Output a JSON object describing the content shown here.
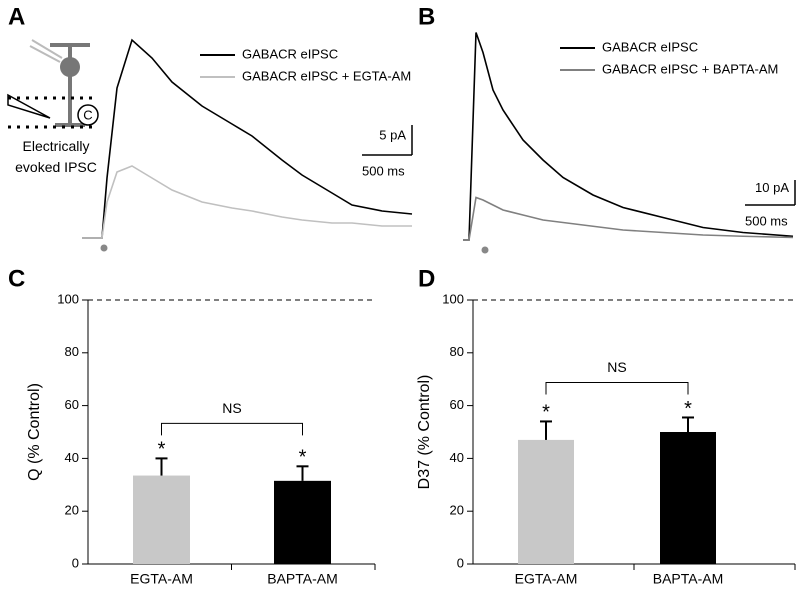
{
  "chart_data": [
    {
      "type": "line",
      "panel_label": "A",
      "x_unit": "ms",
      "x": [
        0,
        200,
        250,
        350,
        500,
        700,
        900,
        1200,
        1500,
        1700,
        2000,
        2200,
        2500,
        2700,
        3000,
        3300
      ],
      "series": [
        {
          "name": "GABACR eIPSC",
          "color": "#000000",
          "values": [
            0,
            0,
            10,
            25,
            33,
            30,
            26,
            22,
            19,
            17,
            13,
            10.5,
            7.5,
            5.5,
            4.5,
            4
          ]
        },
        {
          "name": "GABACR eIPSC + EGTA-AM",
          "color": "#c0c0c0",
          "values": [
            0,
            0,
            6,
            11,
            12,
            10,
            8,
            6,
            5,
            4.5,
            3.5,
            3,
            2.5,
            2.5,
            2,
            2
          ]
        }
      ],
      "scale_bar": {
        "y": 5,
        "y_label": "5 pA",
        "x": 500,
        "x_label": "500 ms"
      },
      "inset_label": "Electrically evoked IPSC"
    },
    {
      "type": "line",
      "panel_label": "B",
      "x_unit": "ms",
      "x": [
        0,
        60,
        130,
        200,
        300,
        400,
        600,
        800,
        1000,
        1300,
        1600,
        2000,
        2400,
        2800,
        3300
      ],
      "series": [
        {
          "name": "GABACR eIPSC",
          "color": "#000000",
          "values": [
            0,
            0,
            83,
            75,
            60,
            52,
            40,
            32,
            25,
            18,
            13,
            9,
            5,
            3,
            1.5
          ]
        },
        {
          "name": "GABACR eIPSC + BAPTA-AM",
          "color": "#808080",
          "values": [
            0,
            0,
            17,
            16,
            14,
            12,
            10,
            8,
            7,
            5.5,
            4,
            3,
            2,
            1.5,
            1
          ]
        }
      ],
      "scale_bar": {
        "y": 10,
        "y_label": "10 pA",
        "x": 500,
        "x_label": "500 ms"
      }
    },
    {
      "type": "bar",
      "panel_label": "C",
      "y_label": "Q  (% Control)",
      "categories": [
        "EGTA-AM",
        "BAPTA-AM"
      ],
      "values": [
        33.5,
        31.5
      ],
      "errors": [
        6.5,
        5.5
      ],
      "colors": [
        "#c8c8c8",
        "#000000"
      ],
      "ylim": [
        0,
        100
      ],
      "yticks": [
        0,
        20,
        40,
        60,
        80,
        100
      ],
      "reference_line": 100,
      "stars": [
        "*",
        "*"
      ],
      "bracket_label": "NS"
    },
    {
      "type": "bar",
      "panel_label": "D",
      "y_label": "D37  (% Control)",
      "categories": [
        "EGTA-AM",
        "BAPTA-AM"
      ],
      "values": [
        47,
        50
      ],
      "errors": [
        7,
        5.5
      ],
      "colors": [
        "#c8c8c8",
        "#000000"
      ],
      "ylim": [
        0,
        100
      ],
      "yticks": [
        0,
        20,
        40,
        60,
        80,
        100
      ],
      "reference_line": 100,
      "stars": [
        "*",
        "*"
      ],
      "bracket_label": "NS"
    }
  ]
}
